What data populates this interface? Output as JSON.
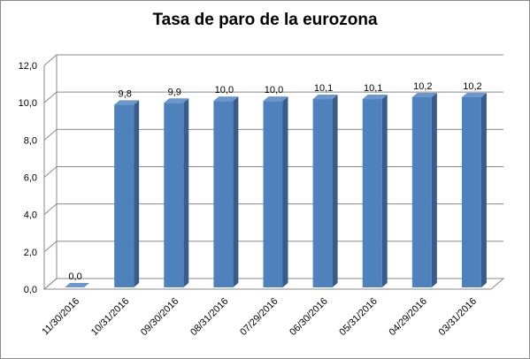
{
  "chart_data": {
    "type": "bar",
    "title": "Tasa de paro de la eurozona",
    "xlabel": "",
    "ylabel": "",
    "categories": [
      "11/30/2016",
      "10/31/2016",
      "09/30/2016",
      "08/31/2016",
      "07/29/2016",
      "06/30/2016",
      "05/31/2016",
      "04/29/2016",
      "03/31/2016"
    ],
    "values": [
      0.0,
      9.8,
      9.9,
      10.0,
      10.0,
      10.1,
      10.1,
      10.2,
      10.2
    ],
    "data_labels": [
      "0,0",
      "9,8",
      "9,9",
      "10,0",
      "10,0",
      "10,1",
      "10,1",
      "10,2",
      "10,2"
    ],
    "ylim": [
      0,
      12
    ],
    "yticks": [
      0,
      2,
      4,
      6,
      8,
      10,
      12
    ],
    "ytick_labels": [
      "0,0",
      "2,0",
      "4,0",
      "6,0",
      "8,0",
      "10,0",
      "12,0"
    ],
    "grid": true,
    "legend": "none",
    "style": "3d-column",
    "colors": {
      "bar_front": "#4f81bd",
      "bar_side": "#385d8a",
      "bar_top": "#6d96cc",
      "grid": "#898989"
    }
  }
}
